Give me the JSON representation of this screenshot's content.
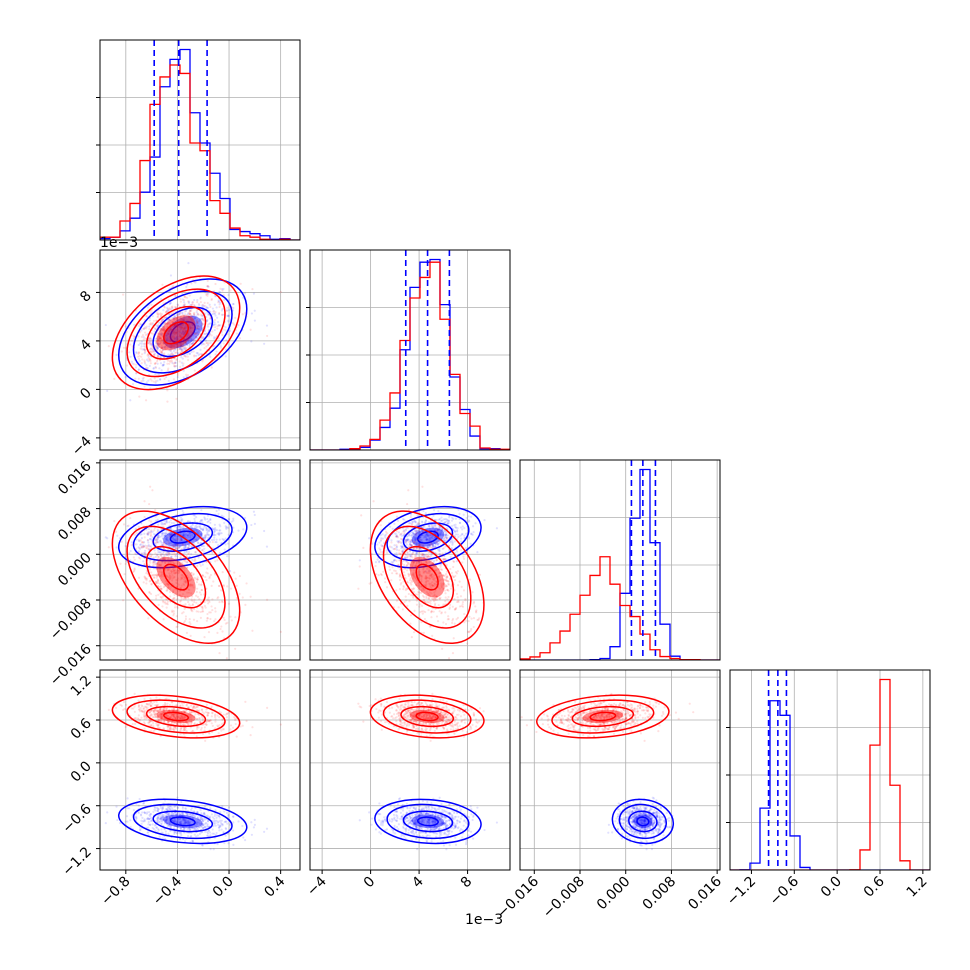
{
  "chart_data": {
    "type": "corner",
    "description_of_panels": "lower-triangle 4x4 corner plot; diagonal = 1D histograms, off-diagonal = 2D density (points + shaded histogram + contours)",
    "colors": {
      "series_a": "#0000ff",
      "series_b": "#ff0000",
      "grid": "#b0b0b0"
    },
    "grid": true,
    "parameters": [
      {
        "range": [
          -1.0,
          0.55
        ],
        "ticks": [
          -0.8,
          -0.4,
          0.0,
          0.4
        ],
        "tick_labels": [
          "−0.8",
          "−0.4",
          "0.0",
          "0.4"
        ],
        "offset_label": ""
      },
      {
        "range": [
          -0.005,
          0.0115
        ],
        "ticks": [
          -0.004,
          0.0,
          0.004,
          0.008
        ],
        "tick_labels": [
          "−4",
          "0",
          "4",
          "8"
        ],
        "offset_label": "1e−3"
      },
      {
        "range": [
          -0.0185,
          0.0165
        ],
        "ticks": [
          -0.016,
          -0.008,
          0.0,
          0.008,
          0.016
        ],
        "tick_labels": [
          "−0.016",
          "−0.008",
          "0.000",
          "0.008",
          "0.016"
        ],
        "offset_label": ""
      },
      {
        "range": [
          -1.5,
          1.3
        ],
        "ticks": [
          -1.2,
          -0.6,
          0.0,
          0.6,
          1.2
        ],
        "tick_labels": [
          "−1.2",
          "−0.6",
          "0.0",
          "0.6",
          "1.2"
        ],
        "offset_label": ""
      }
    ],
    "series": [
      {
        "color": "#0000ff",
        "dims": [
          {
            "mean": -0.38,
            "sd": 0.17,
            "skew_tail": 0.15,
            "quantiles": [
              -0.58,
              -0.39,
              -0.17
            ]
          },
          {
            "mean": 0.0047,
            "sd": 0.0017,
            "quantiles": [
              0.0029,
              0.0047,
              0.0065
            ]
          },
          {
            "mean": 0.003,
            "sd": 0.002,
            "quantiles": [
              0.001,
              0.003,
              0.0052
            ]
          },
          {
            "mean": -0.82,
            "sd": 0.12,
            "quantiles": [
              -0.96,
              -0.83,
              -0.71
            ]
          }
        ],
        "corr": [
          [
            1,
            0.45,
            0.35,
            -0.3
          ],
          [
            0.45,
            1,
            0.3,
            -0.2
          ],
          [
            0.35,
            0.3,
            1,
            -0.1
          ],
          [
            -0.3,
            -0.2,
            -0.1,
            1
          ]
        ]
      },
      {
        "color": "#ff0000",
        "dims": [
          {
            "mean": -0.42,
            "sd": 0.17,
            "skew_tail": 0.1
          },
          {
            "mean": 0.0046,
            "sd": 0.0018
          },
          {
            "mean": -0.004,
            "sd": 0.0045
          },
          {
            "mean": 0.65,
            "sd": 0.11
          }
        ],
        "corr": [
          [
            1,
            0.45,
            -0.5,
            -0.3
          ],
          [
            0.45,
            1,
            -0.4,
            -0.2
          ],
          [
            -0.5,
            -0.4,
            1,
            0.2
          ],
          [
            -0.3,
            -0.2,
            0.2,
            1
          ]
        ]
      }
    ]
  }
}
